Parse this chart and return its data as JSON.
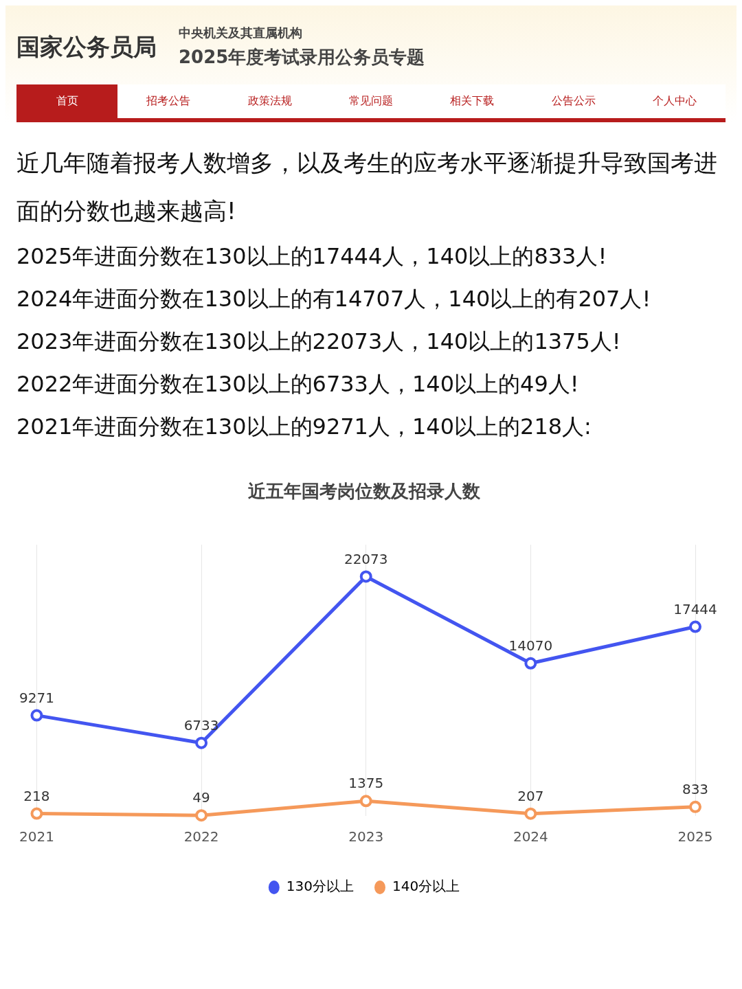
{
  "chart_data": {
    "type": "line",
    "title": "近五年国考岗位数及招录人数",
    "categories": [
      "2021",
      "2022",
      "2023",
      "2024",
      "2025"
    ],
    "series": [
      {
        "name": "130分以上",
        "color": "#4355f0",
        "values": [
          9271,
          6733,
          22073,
          14070,
          17444
        ]
      },
      {
        "name": "140分以上",
        "color": "#f5995a",
        "values": [
          218,
          49,
          1375,
          207,
          833
        ]
      }
    ],
    "data_labels": true,
    "grid": "x",
    "legend": "bottom",
    "marker": "circle",
    "line_style": "solid",
    "annotations": [
      "国家公务员局",
      "中央机关及其直属机构",
      "2025年度考试录用公务员专题",
      "首页",
      "招考公告",
      "政策法规",
      "常见问题",
      "相关下载",
      "公告公示",
      "个人中心",
      "近几年随着报考人数增多，以及考生的应考水平逐渐提升导致国考进面的分数也越来越高!",
      "2025年进面分数在130以上的17444人，140以上的833人!",
      "2024年进面分数在130以上的有14707人，140以上的有207人!",
      "2023年进面分数在130以上的22073人，140以上的1375人!",
      "2022年进面分数在130以上的6733人，140以上的49人!",
      "2021年进面分数在130以上的9271人，140以上的218人:"
    ]
  }
}
